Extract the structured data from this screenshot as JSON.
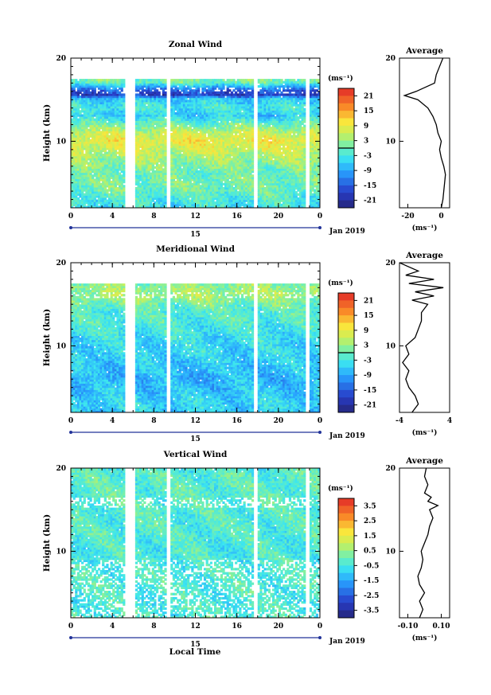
{
  "figure": {
    "xlabel": "Local Time",
    "date_label": "15",
    "month_label": "Jan 2019"
  },
  "chart_data": [
    {
      "type": "heatmap",
      "title": "Zonal Wind",
      "ylabel": "Height (km)",
      "xlim": [
        0,
        24
      ],
      "ylim": [
        2,
        20
      ],
      "xticks": [
        "0",
        "4",
        "8",
        "12",
        "16",
        "20",
        "0"
      ],
      "yticks": [
        "10",
        "20"
      ],
      "colorbar": {
        "unit": "(ms⁻¹)",
        "range": [
          -24,
          24
        ],
        "ticks": [
          "21",
          "15",
          "9",
          "3",
          "-3",
          "-9",
          "-15",
          "-21"
        ],
        "contour_at": 0
      },
      "data_gaps_hours": [
        [
          5.3,
          6.2
        ],
        [
          9.2,
          9.6
        ],
        [
          17.6,
          18.0
        ],
        [
          22.6,
          22.9
        ]
      ],
      "top_height_km": 17.5,
      "profile": {
        "title": "Average",
        "xlim": [
          -25,
          5
        ],
        "xticks": [
          "-20",
          "0"
        ],
        "xlabel": "(ms⁻¹)",
        "height": [
          2,
          3,
          4,
          5,
          6,
          7,
          8,
          9,
          10,
          11,
          12,
          13,
          14,
          15,
          15.5,
          16,
          17,
          18,
          19,
          20
        ],
        "value": [
          0,
          1,
          1.5,
          2,
          2.5,
          1.5,
          0,
          -1,
          0,
          -2,
          -3,
          -5,
          -8,
          -14,
          -22,
          -15,
          -4,
          -3,
          -1,
          1
        ]
      },
      "field": {
        "profile": [
          [
            2,
            -4
          ],
          [
            3,
            -2
          ],
          [
            4,
            0
          ],
          [
            5,
            1
          ],
          [
            6,
            0
          ],
          [
            7,
            2
          ],
          [
            8,
            4
          ],
          [
            9,
            7
          ],
          [
            10,
            9
          ],
          [
            11,
            6
          ],
          [
            12,
            0
          ],
          [
            13,
            -6
          ],
          [
            14,
            -3
          ],
          [
            15,
            -6
          ],
          [
            15.5,
            -18
          ],
          [
            16,
            -15
          ],
          [
            17,
            0
          ],
          [
            17.5,
            2
          ]
        ]
      }
    },
    {
      "type": "heatmap",
      "title": "Meridional Wind",
      "ylabel": "Height (km)",
      "xlim": [
        0,
        24
      ],
      "ylim": [
        2,
        20
      ],
      "xticks": [
        "0",
        "4",
        "8",
        "12",
        "16",
        "20",
        "0"
      ],
      "yticks": [
        "10",
        "20"
      ],
      "colorbar": {
        "unit": "(ms⁻¹)",
        "range": [
          -24,
          24
        ],
        "ticks": [
          "21",
          "15",
          "9",
          "3",
          "-3",
          "-9",
          "-15",
          "-21"
        ],
        "contour_at": 0
      },
      "data_gaps_hours": [
        [
          5.3,
          6.2
        ],
        [
          9.2,
          9.6
        ],
        [
          17.6,
          18.0
        ],
        [
          22.6,
          22.9
        ]
      ],
      "top_height_km": 17.5,
      "profile": {
        "title": "Average",
        "xlim": [
          -4,
          4
        ],
        "xticks": [
          "-4",
          "4"
        ],
        "xlabel": "(ms⁻¹)",
        "height": [
          2,
          3,
          4,
          5,
          6,
          7,
          8,
          9,
          10,
          11,
          12,
          13,
          14,
          15,
          15.5,
          16,
          16.5,
          17,
          17.5,
          18,
          18.5,
          19,
          20
        ],
        "value": [
          -2,
          -1,
          -1.5,
          -2.5,
          -3,
          -2.5,
          -3.5,
          -2.5,
          -3,
          -1.5,
          -1,
          -0.5,
          -0.5,
          0.5,
          -2,
          1.5,
          -1.5,
          3,
          -2.5,
          1.5,
          -3,
          -1,
          -4
        ]
      },
      "field": {
        "profile": [
          [
            2,
            -6
          ],
          [
            3,
            -5
          ],
          [
            4,
            -6
          ],
          [
            5,
            -7
          ],
          [
            6,
            -8
          ],
          [
            7,
            -7
          ],
          [
            8,
            -6
          ],
          [
            9,
            -5
          ],
          [
            10,
            -5
          ],
          [
            11,
            -4
          ],
          [
            12,
            -3
          ],
          [
            13,
            -2
          ],
          [
            14,
            -2
          ],
          [
            15,
            1
          ],
          [
            16,
            4
          ],
          [
            17,
            3
          ],
          [
            17.5,
            1
          ]
        ]
      }
    },
    {
      "type": "heatmap",
      "title": "Vertical Wind",
      "ylabel": "Height (km)",
      "xlim": [
        0,
        24
      ],
      "ylim": [
        2,
        20
      ],
      "xticks": [
        "0",
        "4",
        "8",
        "12",
        "16",
        "20",
        "0"
      ],
      "yticks": [
        "10",
        "20"
      ],
      "colorbar": {
        "unit": "(ms⁻¹)",
        "range": [
          -4,
          4
        ],
        "ticks": [
          "3.5",
          "2.5",
          "1.5",
          "0.5",
          "-0.5",
          "-1.5",
          "-2.5",
          "-3.5"
        ]
      },
      "data_gaps_hours": [
        [
          5.3,
          6.2
        ],
        [
          9.2,
          9.6
        ],
        [
          17.6,
          18.0
        ],
        [
          22.6,
          22.9
        ]
      ],
      "top_height_km": 19.8,
      "profile": {
        "title": "Average",
        "xlim": [
          -0.15,
          0.15
        ],
        "xticks": [
          "-0.10",
          "0.10"
        ],
        "xlabel": "(ms⁻¹)",
        "height": [
          2,
          3,
          4,
          5,
          6,
          7,
          8,
          9,
          10,
          11,
          12,
          13,
          14,
          15,
          15.5,
          16,
          16.5,
          17,
          18,
          19,
          20
        ],
        "value": [
          -0.03,
          -0.01,
          -0.03,
          0.0,
          -0.03,
          -0.04,
          -0.02,
          -0.01,
          -0.02,
          0.0,
          0.02,
          0.03,
          0.05,
          0.03,
          0.08,
          0.02,
          0.04,
          0.0,
          0.02,
          0.0,
          0.01
        ]
      },
      "field": {
        "profile": [
          [
            2,
            -0.3
          ],
          [
            4,
            -0.4
          ],
          [
            6,
            -0.3
          ],
          [
            8,
            -0.4
          ],
          [
            10,
            -0.4
          ],
          [
            12,
            -0.3
          ],
          [
            14,
            -0.3
          ],
          [
            16,
            -0.2
          ],
          [
            18,
            -0.2
          ],
          [
            19.8,
            -0.3
          ]
        ]
      }
    }
  ]
}
